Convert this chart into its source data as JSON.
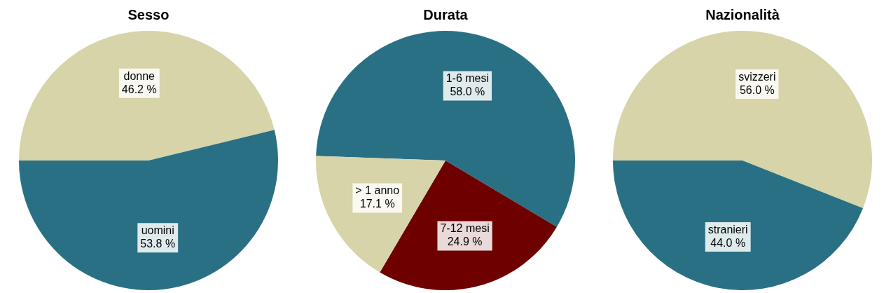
{
  "chart_data": [
    {
      "type": "pie",
      "title": "Sesso",
      "categories": [
        "donne",
        "uomini"
      ],
      "values": [
        46.2,
        53.8
      ],
      "colors": [
        "#d6d4a8",
        "#2a7084"
      ],
      "value_labels": [
        "46.2 %",
        "53.8 %"
      ],
      "legend": false
    },
    {
      "type": "pie",
      "title": "Durata",
      "categories": [
        "1-6 mesi",
        "7-12 mesi",
        "> 1 anno"
      ],
      "values": [
        58.0,
        24.9,
        17.1
      ],
      "colors": [
        "#2a7084",
        "#6e0000",
        "#d6d4a8"
      ],
      "value_labels": [
        "58.0 %",
        "24.9 %",
        "17.1 %"
      ],
      "legend": false
    },
    {
      "type": "pie",
      "title": "Nazionalità",
      "categories": [
        "svizzeri",
        "stranieri"
      ],
      "values": [
        56.0,
        44.0
      ],
      "colors": [
        "#d6d4a8",
        "#2a7084"
      ],
      "value_labels": [
        "56.0 %",
        "44.0 %"
      ],
      "legend": false
    }
  ]
}
